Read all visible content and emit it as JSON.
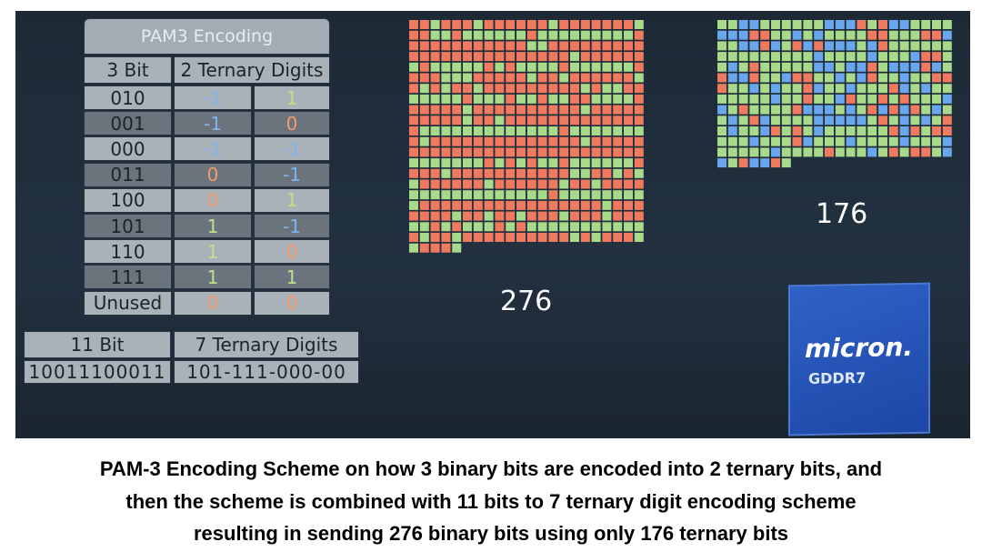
{
  "table": {
    "title": "PAM3 Encoding",
    "headers": [
      "3 Bit",
      "2 Ternary Digits"
    ],
    "rows": [
      [
        "010",
        "-1",
        "1"
      ],
      [
        "001",
        "-1",
        "0"
      ],
      [
        "000",
        "-1",
        "-1"
      ],
      [
        "011",
        "0",
        "-1"
      ],
      [
        "100",
        "0",
        "1"
      ],
      [
        "101",
        "1",
        "-1"
      ],
      [
        "110",
        "1",
        "0"
      ],
      [
        "111",
        "1",
        "1"
      ],
      [
        "Unused",
        "0",
        "0"
      ]
    ]
  },
  "table2": {
    "headers": [
      "11 Bit",
      "7 Ternary Digits"
    ],
    "row": [
      "10011100011",
      "101-111-000-00"
    ]
  },
  "binary_count": "276",
  "ternary_count": "176",
  "chip": {
    "brand": "micron.",
    "model": "GDDR7"
  },
  "caption": [
    "PAM-3 Encoding Scheme on how 3 binary bits are encoded into 2 ternary bits, and",
    "then the scheme is combined with  11 bits to 7 ternary digit encoding scheme",
    "resulting in sending 276 binary bits using only 176 ternary bits"
  ]
}
